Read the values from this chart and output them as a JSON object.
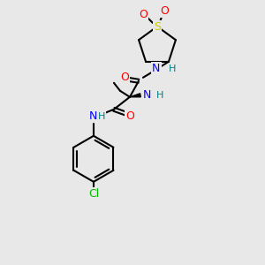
{
  "bg_color": "#e8e8e8",
  "atom_colors": {
    "C": "#000000",
    "N": "#0000ff",
    "O": "#ff0000",
    "S": "#cccc00",
    "Cl": "#00bb00",
    "H": "#008080"
  },
  "bond_color": "#000000",
  "lw": 1.5
}
